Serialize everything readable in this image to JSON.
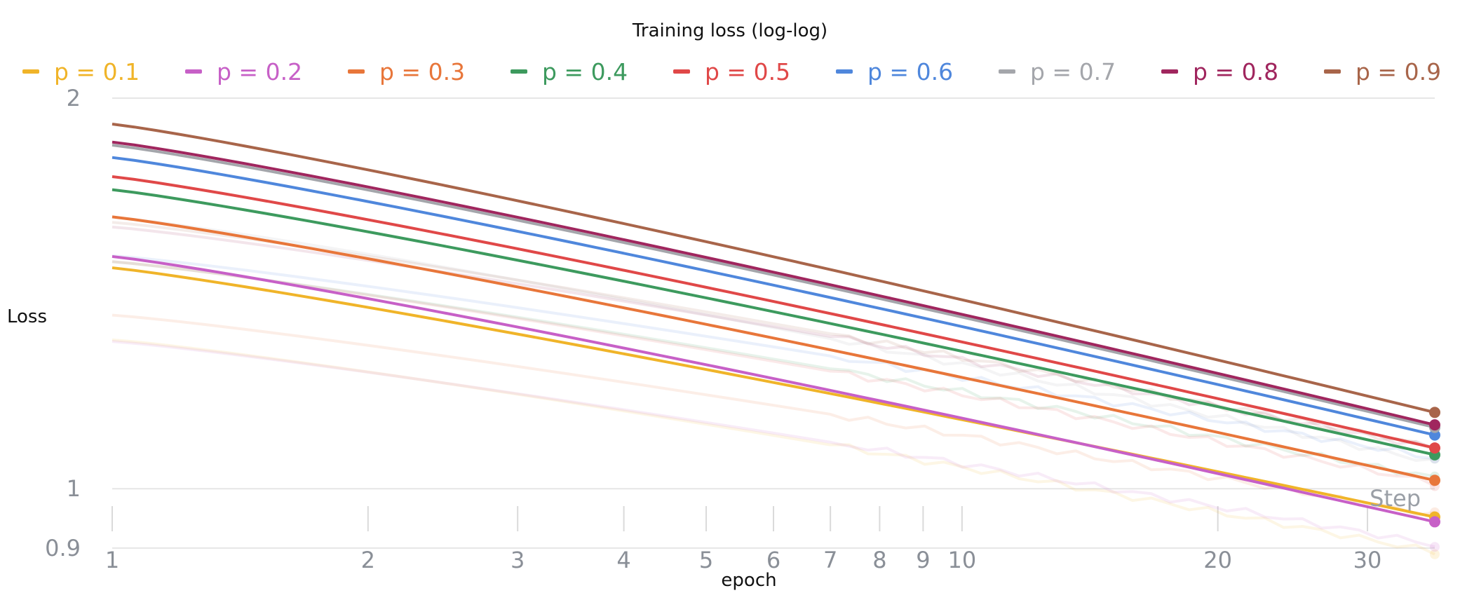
{
  "chart_data": {
    "type": "line",
    "title": "Training loss (log-log)",
    "xlabel": "epoch",
    "ylabel": "Loss",
    "x_scale": "log",
    "y_scale": "log",
    "xlim": [
      1,
      36
    ],
    "ylim": [
      0.88,
      2.0
    ],
    "x_ticks": [
      1,
      2,
      3,
      4,
      5,
      6,
      7,
      8,
      9,
      10,
      20,
      30
    ],
    "y_ticks": [
      0.9,
      1,
      2
    ],
    "grid": "horizontal",
    "legend_position": "top",
    "corner_label": "Step",
    "series": [
      {
        "name": "p = 0.1",
        "color": "#f0b429",
        "start": 1.48,
        "end": 0.951
      },
      {
        "name": "p = 0.2",
        "color": "#c760c7",
        "start": 1.51,
        "end": 0.943
      },
      {
        "name": "p = 0.3",
        "color": "#e8763a",
        "start": 1.62,
        "end": 1.015
      },
      {
        "name": "p = 0.4",
        "color": "#3d9a5e",
        "start": 1.7,
        "end": 1.062
      },
      {
        "name": "p = 0.5",
        "color": "#e04848",
        "start": 1.74,
        "end": 1.075
      },
      {
        "name": "p = 0.6",
        "color": "#4f87dc",
        "start": 1.8,
        "end": 1.1
      },
      {
        "name": "p = 0.7",
        "color": "#a4a6ab",
        "start": 1.84,
        "end": 1.115
      },
      {
        "name": "p = 0.8",
        "color": "#a0265e",
        "start": 1.85,
        "end": 1.12
      },
      {
        "name": "p = 0.9",
        "color": "#a8654a",
        "start": 1.91,
        "end": 1.145
      }
    ]
  }
}
